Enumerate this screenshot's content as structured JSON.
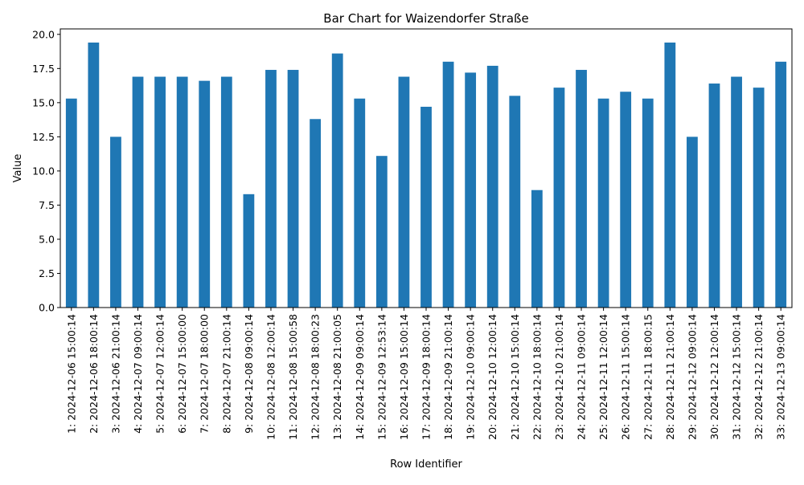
{
  "chart_data": {
    "type": "bar",
    "title": "Bar Chart for Waizendorfer Straße",
    "xlabel": "Row Identifier",
    "ylabel": "Value",
    "ylim": [
      0,
      20.4
    ],
    "yticks": [
      "0.0",
      "2.5",
      "5.0",
      "7.5",
      "10.0",
      "12.5",
      "15.0",
      "17.5",
      "20.0"
    ],
    "grid": false,
    "legend": "none",
    "bar_color": "#1f77b4",
    "categories": [
      "1: 2024-12-06 15:00:14",
      "2: 2024-12-06 18:00:14",
      "3: 2024-12-06 21:00:14",
      "4: 2024-12-07 09:00:14",
      "5: 2024-12-07 12:00:14",
      "6: 2024-12-07 15:00:00",
      "7: 2024-12-07 18:00:00",
      "8: 2024-12-07 21:00:14",
      "9: 2024-12-08 09:00:14",
      "10: 2024-12-08 12:00:14",
      "11: 2024-12-08 15:00:58",
      "12: 2024-12-08 18:00:23",
      "13: 2024-12-08 21:00:05",
      "14: 2024-12-09 09:00:14",
      "15: 2024-12-09 12:53:14",
      "16: 2024-12-09 15:00:14",
      "17: 2024-12-09 18:00:14",
      "18: 2024-12-09 21:00:14",
      "19: 2024-12-10 09:00:14",
      "20: 2024-12-10 12:00:14",
      "21: 2024-12-10 15:00:14",
      "22: 2024-12-10 18:00:14",
      "23: 2024-12-10 21:00:14",
      "24: 2024-12-11 09:00:14",
      "25: 2024-12-11 12:00:14",
      "26: 2024-12-11 15:00:14",
      "27: 2024-12-11 18:00:15",
      "28: 2024-12-11 21:00:14",
      "29: 2024-12-12 09:00:14",
      "30: 2024-12-12 12:00:14",
      "31: 2024-12-12 15:00:14",
      "32: 2024-12-12 21:00:14",
      "33: 2024-12-13 09:00:14"
    ],
    "values": [
      15.3,
      19.4,
      12.5,
      16.9,
      16.9,
      16.9,
      16.6,
      16.9,
      8.3,
      17.4,
      17.4,
      13.8,
      18.6,
      15.3,
      11.1,
      16.9,
      14.7,
      18.0,
      17.2,
      17.7,
      15.5,
      8.6,
      16.1,
      17.4,
      15.3,
      15.8,
      15.3,
      19.4,
      12.5,
      16.4,
      16.9,
      16.1,
      18.0
    ]
  }
}
